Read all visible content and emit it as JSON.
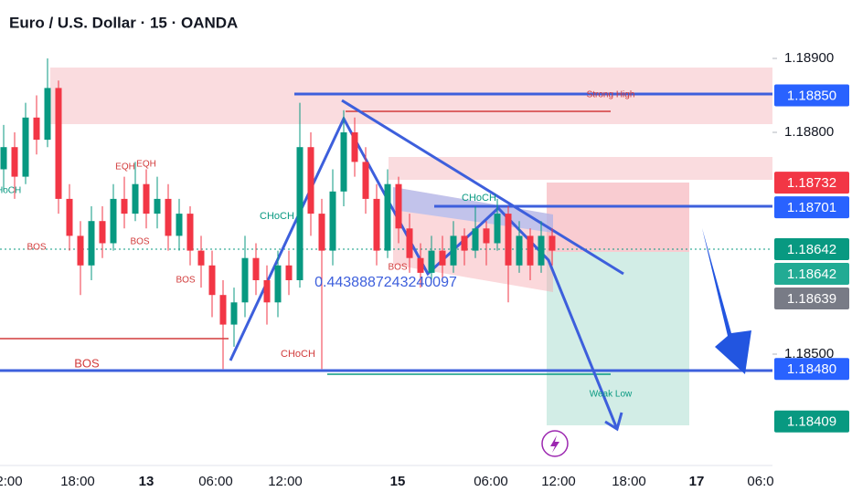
{
  "header": {
    "title": "Euro / U.S. Dollar · 15 · OANDA"
  },
  "price_axis": {
    "ticks": [
      {
        "value": 1.189,
        "label": "1.18900"
      },
      {
        "value": 1.188,
        "label": "1.18800"
      },
      {
        "value": 1.185,
        "label": "1.18500"
      }
    ],
    "badges": [
      {
        "value": 1.1885,
        "label": "1.18850",
        "color": "#2962ff"
      },
      {
        "value": 1.18732,
        "label": "1.18732",
        "color": "#f23645"
      },
      {
        "value": 1.18701,
        "label": "1.18701",
        "color": "#2962ff"
      },
      {
        "value": 1.18642,
        "label": "1.18642",
        "color": "#089981"
      },
      {
        "value": 1.18642,
        "label": "1.18642",
        "color": "#22ab94"
      },
      {
        "value": 1.18639,
        "label": "1.18639",
        "color": "#787b86"
      },
      {
        "value": 1.1848,
        "label": "1.18480",
        "color": "#2962ff"
      },
      {
        "value": 1.18409,
        "label": "1.18409",
        "color": "#089981"
      }
    ]
  },
  "time_axis": [
    "2:00",
    "18:00",
    "13",
    "06:00",
    "12:00",
    "15",
    "06:00",
    "12:00",
    "18:00",
    "17",
    "06:0"
  ],
  "annotations": [
    "Strong High",
    "BOS",
    "EQH",
    "EQH",
    "BOS",
    "BOS",
    "CHoCH",
    "CHoCH",
    "BOS",
    "BOS",
    "CHoCH",
    "0.4438887243240097",
    "Weak Low",
    "CHoCH"
  ],
  "candles": [
    [
      1.1875,
      1.1881,
      1.1872,
      1.1878
    ],
    [
      1.1878,
      1.188,
      1.1871,
      1.1874
    ],
    [
      1.1874,
      1.1884,
      1.1873,
      1.1882
    ],
    [
      1.1882,
      1.1885,
      1.1877,
      1.1879
    ],
    [
      1.1879,
      1.189,
      1.1878,
      1.1886
    ],
    [
      1.1886,
      1.1887,
      1.1869,
      1.1871
    ],
    [
      1.1871,
      1.1873,
      1.1864,
      1.1866
    ],
    [
      1.1866,
      1.1868,
      1.1858,
      1.1862
    ],
    [
      1.1862,
      1.187,
      1.186,
      1.1868
    ],
    [
      1.1868,
      1.187,
      1.1863,
      1.1865
    ],
    [
      1.1865,
      1.1873,
      1.1864,
      1.1871
    ],
    [
      1.1871,
      1.1874,
      1.1867,
      1.1869
    ],
    [
      1.1869,
      1.1876,
      1.1868,
      1.1873
    ],
    [
      1.1873,
      1.1875,
      1.1867,
      1.1869
    ],
    [
      1.1869,
      1.1874,
      1.1867,
      1.1871
    ],
    [
      1.1871,
      1.1873,
      1.1864,
      1.1866
    ],
    [
      1.1866,
      1.1871,
      1.1864,
      1.1869
    ],
    [
      1.1869,
      1.187,
      1.1862,
      1.1864
    ],
    [
      1.1864,
      1.1866,
      1.1859,
      1.1862
    ],
    [
      1.1862,
      1.1864,
      1.1855,
      1.1858
    ],
    [
      1.1858,
      1.186,
      1.1848,
      1.1854
    ],
    [
      1.1854,
      1.1859,
      1.1851,
      1.1857
    ],
    [
      1.1857,
      1.1866,
      1.1855,
      1.1863
    ],
    [
      1.1863,
      1.1865,
      1.1858,
      1.186
    ],
    [
      1.186,
      1.1862,
      1.1854,
      1.1857
    ],
    [
      1.1857,
      1.1864,
      1.1855,
      1.1862
    ],
    [
      1.1862,
      1.1864,
      1.1858,
      1.186
    ],
    [
      1.186,
      1.1884,
      1.1859,
      1.1878
    ],
    [
      1.1878,
      1.188,
      1.1866,
      1.1869
    ],
    [
      1.1869,
      1.1871,
      1.1848,
      1.1864
    ],
    [
      1.1864,
      1.1875,
      1.1862,
      1.1872
    ],
    [
      1.1872,
      1.1883,
      1.187,
      1.188
    ],
    [
      1.188,
      1.1882,
      1.1874,
      1.1876
    ],
    [
      1.1876,
      1.1878,
      1.1869,
      1.1871
    ],
    [
      1.1871,
      1.1873,
      1.1862,
      1.1864
    ],
    [
      1.1864,
      1.1875,
      1.1863,
      1.1873
    ],
    [
      1.1873,
      1.1874,
      1.1865,
      1.1867
    ],
    [
      1.1867,
      1.1869,
      1.1861,
      1.1863
    ],
    [
      1.1863,
      1.1865,
      1.1859,
      1.1861
    ],
    [
      1.1861,
      1.1866,
      1.186,
      1.1864
    ],
    [
      1.1864,
      1.1866,
      1.186,
      1.1862
    ],
    [
      1.1862,
      1.1868,
      1.1861,
      1.1866
    ],
    [
      1.1866,
      1.1867,
      1.1862,
      1.1864
    ],
    [
      1.1864,
      1.187,
      1.1863,
      1.1867
    ],
    [
      1.1867,
      1.1868,
      1.1862,
      1.1865
    ],
    [
      1.1865,
      1.1871,
      1.1864,
      1.1869
    ],
    [
      1.1869,
      1.187,
      1.1857,
      1.1862
    ],
    [
      1.1862,
      1.1868,
      1.1861,
      1.1866
    ],
    [
      1.1866,
      1.1867,
      1.186,
      1.1862
    ],
    [
      1.1862,
      1.1868,
      1.1861,
      1.1866
    ],
    [
      1.1866,
      1.1867,
      1.1862,
      1.1864
    ]
  ]
}
